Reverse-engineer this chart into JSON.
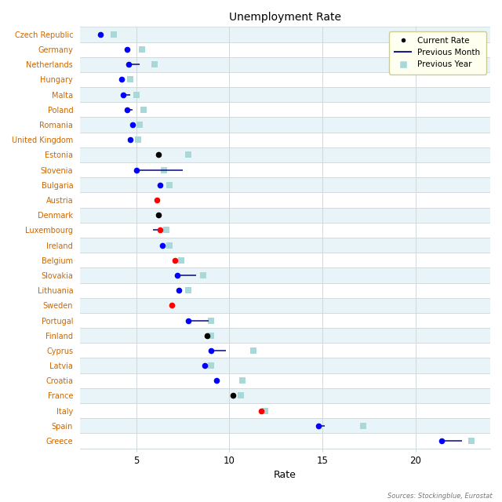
{
  "title": "Unemployment Rate",
  "xlabel": "Rate",
  "source_text": "Sources: Stockingblue, Eurostat",
  "countries": [
    "Czech Republic",
    "Germany",
    "Netherlands",
    "Hungary",
    "Malta",
    "Poland",
    "Romania",
    "United Kingdom",
    "Estonia",
    "Slovenia",
    "Bulgaria",
    "Austria",
    "Denmark",
    "Luxembourg",
    "Ireland",
    "Belgium",
    "Slovakia",
    "Lithuania",
    "Sweden",
    "Portugal",
    "Finland",
    "Cyprus",
    "Latvia",
    "Croatia",
    "France",
    "Italy",
    "Spain",
    "Greece"
  ],
  "current_rate": [
    3.1,
    4.5,
    4.6,
    4.2,
    4.3,
    4.5,
    4.8,
    4.7,
    6.2,
    5.0,
    6.3,
    6.1,
    6.2,
    6.3,
    6.4,
    7.1,
    7.2,
    7.3,
    6.9,
    7.8,
    8.8,
    9.0,
    8.7,
    9.3,
    10.2,
    11.7,
    14.8,
    21.4
  ],
  "prev_month_end": [
    null,
    null,
    5.2,
    null,
    4.7,
    4.8,
    null,
    null,
    null,
    7.5,
    null,
    null,
    null,
    5.9,
    null,
    null,
    8.2,
    null,
    null,
    8.9,
    null,
    9.8,
    null,
    null,
    null,
    null,
    15.1,
    22.5
  ],
  "prev_month_start": [
    null,
    null,
    4.6,
    null,
    4.3,
    4.5,
    null,
    null,
    null,
    5.0,
    null,
    null,
    null,
    6.3,
    null,
    null,
    7.2,
    null,
    null,
    7.8,
    null,
    9.0,
    null,
    null,
    null,
    null,
    14.8,
    21.4
  ],
  "prev_year": [
    3.8,
    5.3,
    6.0,
    4.7,
    5.0,
    5.4,
    5.2,
    5.1,
    7.8,
    6.5,
    6.8,
    null,
    null,
    6.6,
    6.8,
    7.4,
    8.6,
    7.8,
    null,
    9.0,
    9.0,
    11.3,
    9.0,
    10.7,
    10.6,
    11.9,
    17.2,
    23.0
  ],
  "dot_colors": [
    "blue",
    "blue",
    "blue",
    "blue",
    "blue",
    "blue",
    "blue",
    "blue",
    "black",
    "blue",
    "blue",
    "red",
    "black",
    "red",
    "blue",
    "red",
    "blue",
    "blue",
    "red",
    "blue",
    "black",
    "blue",
    "blue",
    "blue",
    "black",
    "red",
    "blue",
    "blue"
  ],
  "xlim": [
    2,
    24
  ],
  "xticks": [
    5,
    10,
    15,
    20
  ],
  "label_color": "#cc6600",
  "sq_color": "#a8d8d8",
  "line_color": "#1a1a8c",
  "bg_color": "#ffffff",
  "row_alt_color": "#e8f4f8",
  "grid_line_color": "#d0d8dc",
  "legend_bg": "#fffff0",
  "legend_edge": "#cccc99"
}
